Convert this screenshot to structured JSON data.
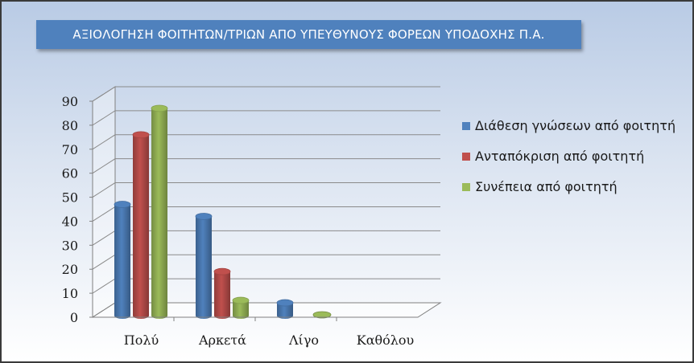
{
  "chart_data": {
    "type": "bar",
    "title": "ΑΞΙΟΛΟΓΗΣΗ ΦΟΙΤΗΤΩΝ/ΤΡΙΩΝ ΑΠΟ ΥΠΕΥΘΥΝΟΥΣ ΦΟΡΕΩΝ ΥΠΟΔΟΧΗΣ Π.Α.",
    "categories": [
      "Πολύ",
      "Αρκετά",
      "Λίγο",
      "Καθόλου"
    ],
    "series": [
      {
        "name": "Διάθεση γνώσεων από φοιτητή",
        "values": [
          47,
          42,
          6,
          0
        ],
        "color": "#4f81bd"
      },
      {
        "name": "Ανταπόκριση από φοιτητή",
        "values": [
          76,
          19,
          0,
          0
        ],
        "color": "#c0504d"
      },
      {
        "name": "Συνέπεια από φοιτητή",
        "values": [
          87,
          7,
          1,
          0
        ],
        "color": "#9bbb59"
      }
    ],
    "ylim": [
      0,
      90
    ],
    "yticks": [
      0,
      10,
      20,
      30,
      40,
      50,
      60,
      70,
      80,
      90
    ],
    "grid": true,
    "legend": "right"
  }
}
